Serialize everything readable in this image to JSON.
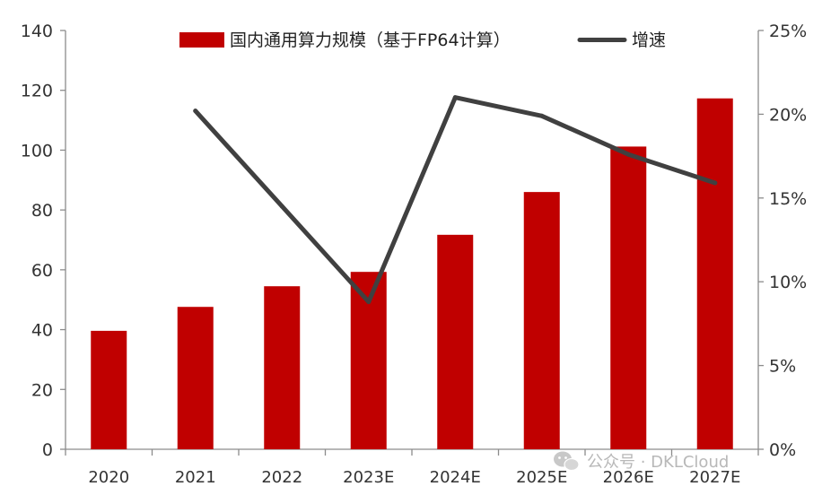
{
  "chart_data": {
    "type": "bar+line",
    "categories": [
      "2020",
      "2021",
      "2022",
      "2023E",
      "2024E",
      "2025E",
      "2026E",
      "2027E"
    ],
    "series": [
      {
        "name": "国内通用算力规模（基于FP64计算）",
        "type": "bar",
        "axis": "left",
        "values": [
          39.6,
          47.6,
          54.5,
          59.3,
          71.7,
          86.0,
          101.2,
          117.3
        ]
      },
      {
        "name": "增速",
        "type": "line",
        "axis": "right",
        "values": [
          null,
          20.2,
          14.5,
          8.8,
          21.0,
          19.9,
          17.6,
          15.9
        ]
      }
    ],
    "left_axis": {
      "min": 0,
      "max": 140,
      "ticks": [
        "0",
        "20",
        "40",
        "60",
        "80",
        "100",
        "120",
        "140"
      ]
    },
    "right_axis": {
      "min": 0,
      "max": 25,
      "ticks": [
        "0%",
        "5%",
        "10%",
        "15%",
        "20%",
        "25%"
      ]
    },
    "legend_position": "top",
    "grid": false,
    "colors": {
      "bar": "#c00000",
      "line": "#404040",
      "axis": "#8c8c8c"
    }
  },
  "watermark": {
    "text": "公众号 · DKLCloud",
    "icon": "wechat-icon"
  }
}
